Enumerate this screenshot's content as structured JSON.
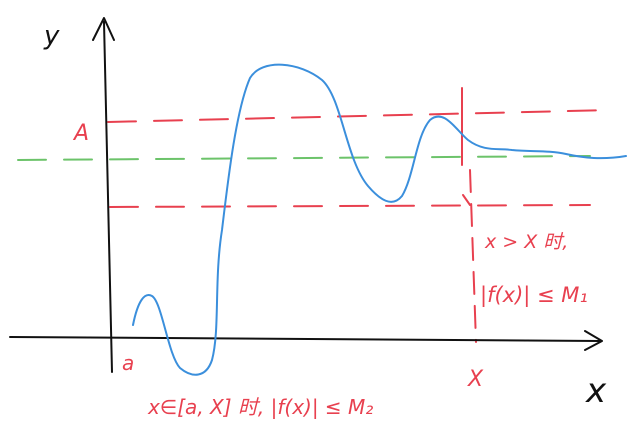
{
  "labels": {
    "y_axis": "y",
    "x_axis": "x",
    "A": "A",
    "a": "a",
    "X": "X",
    "cond_right_line1": "x > X 时,",
    "cond_right_line2": "|f(x)| ≤ M₁",
    "cond_bottom": "x∈[a, X] 时, |f(x)| ≤ M₂"
  },
  "colors": {
    "axis": "#111111",
    "curve": "#3b8fdc",
    "red": "#e8404f",
    "green": "#6cc36a"
  }
}
